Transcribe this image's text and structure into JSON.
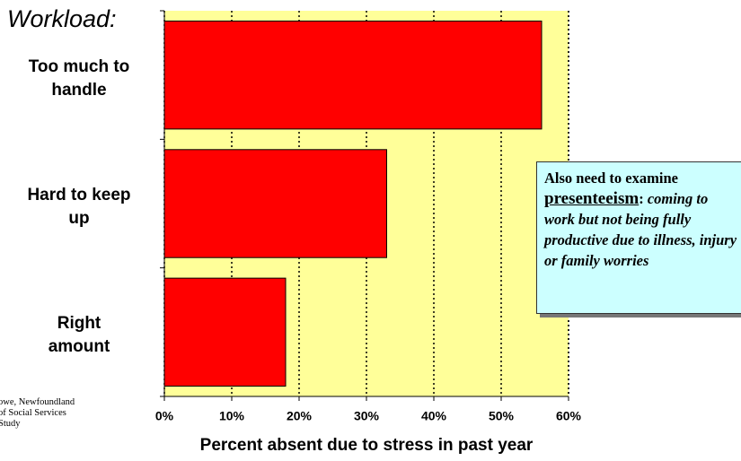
{
  "chart_data": {
    "type": "bar",
    "orientation": "horizontal",
    "title": "Workload:",
    "categories": [
      "Too much to\nhandle",
      "Hard to keep\nup",
      "Right\namount"
    ],
    "values": [
      56,
      33,
      18
    ],
    "color": "#ff0000",
    "plot_background": "#ffff99",
    "xlabel": "Percent absent due to stress in past year",
    "xlim": [
      0,
      60
    ],
    "xticks": [
      {
        "value": 0,
        "label": "0%"
      },
      {
        "value": 10,
        "label": "10%"
      },
      {
        "value": 20,
        "label": "20%"
      },
      {
        "value": 30,
        "label": "30%"
      },
      {
        "value": 40,
        "label": "40%"
      },
      {
        "value": 50,
        "label": "50%"
      },
      {
        "value": 60,
        "label": "60%"
      }
    ],
    "grid": true,
    "annotation": {
      "lead": "Also need to examine",
      "term": "presenteeism",
      "colon": ":",
      "detail": "coming to work but not being fully productive due to illness, injury or family worries"
    },
    "source": [
      "owe,  Newfoundland",
      "of Social Services",
      "Study"
    ]
  }
}
